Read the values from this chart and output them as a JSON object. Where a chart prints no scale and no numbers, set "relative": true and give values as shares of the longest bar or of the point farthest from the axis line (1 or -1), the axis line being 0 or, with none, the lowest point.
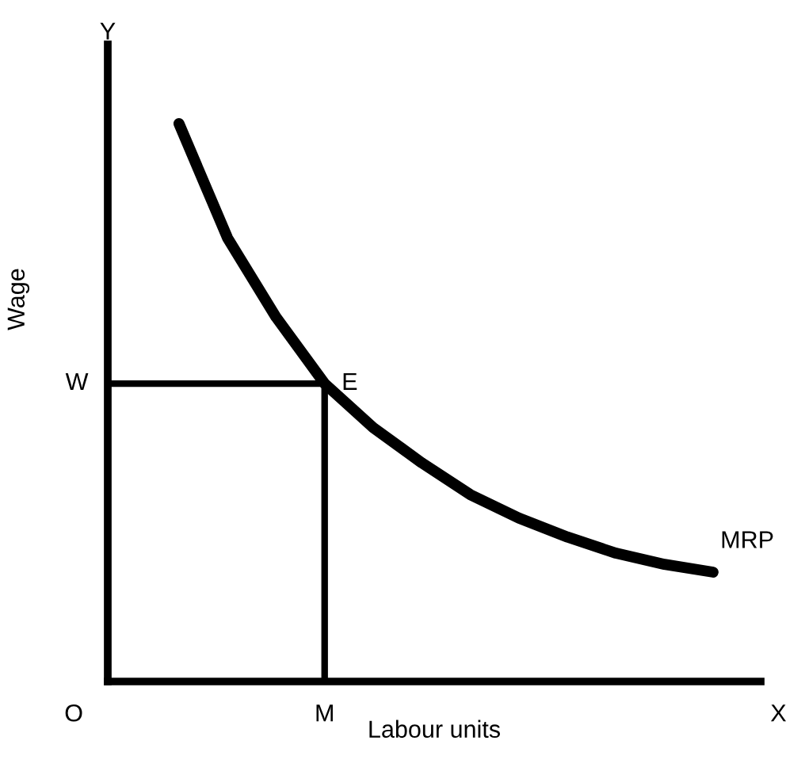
{
  "chart_data": {
    "type": "line",
    "relative": true,
    "xlabel": "Labour units",
    "ylabel": "Wage",
    "categories": [
      null,
      null,
      null,
      null,
      null,
      null,
      null,
      null,
      null,
      null,
      null,
      null
    ],
    "series": [
      {
        "name": "MRP",
        "color": "#000000",
        "values": [
          1,
          0.795,
          0.653,
          0.534,
          0.455,
          0.392,
          0.335,
          0.293,
          0.259,
          0.23,
          0.21,
          0.196
        ]
      }
    ],
    "ref_lines": [
      {
        "axis": "y",
        "value": 0.534,
        "label": "W",
        "color": "#000000"
      }
    ],
    "annotations": [
      "E",
      "M",
      "O",
      "Y",
      "X"
    ],
    "grid": false,
    "legend": false
  }
}
